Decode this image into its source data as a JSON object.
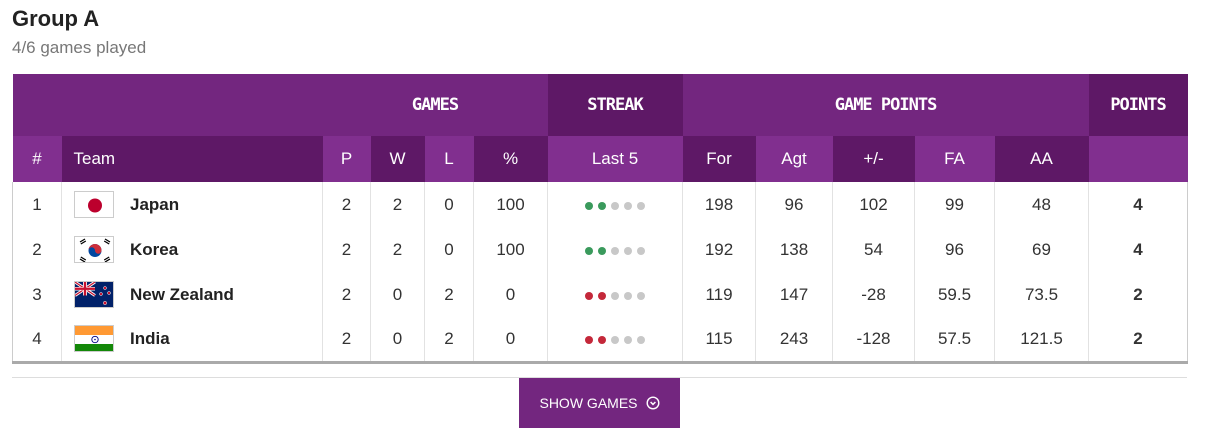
{
  "group": {
    "title": "Group A",
    "subtitle": "4/6 games played"
  },
  "header_groups": {
    "games": "GAMES",
    "streak": "STREAK",
    "game_points": "GAME POINTS",
    "points": "POINTS"
  },
  "columns": {
    "rank": "#",
    "team": "Team",
    "p": "P",
    "w": "W",
    "l": "L",
    "pct": "%",
    "last5": "Last 5",
    "for": "For",
    "agt": "Agt",
    "diff": "+/-",
    "fa": "FA",
    "aa": "AA"
  },
  "colors": {
    "accent": "#73267f",
    "win": "#3a9a5c",
    "loss": "#c4283a",
    "none": "#c8c8c8"
  },
  "teams": [
    {
      "rank": "1",
      "name": "Japan",
      "flag": "japan-flag-icon",
      "p": "2",
      "w": "2",
      "l": "0",
      "pct": "100",
      "streak": [
        "W",
        "W",
        "-",
        "-",
        "-"
      ],
      "for": "198",
      "agt": "96",
      "diff": "102",
      "fa": "99",
      "aa": "48",
      "points": "4"
    },
    {
      "rank": "2",
      "name": "Korea",
      "flag": "korea-flag-icon",
      "p": "2",
      "w": "2",
      "l": "0",
      "pct": "100",
      "streak": [
        "W",
        "W",
        "-",
        "-",
        "-"
      ],
      "for": "192",
      "agt": "138",
      "diff": "54",
      "fa": "96",
      "aa": "69",
      "points": "4"
    },
    {
      "rank": "3",
      "name": "New Zealand",
      "flag": "new-zealand-flag-icon",
      "p": "2",
      "w": "0",
      "l": "2",
      "pct": "0",
      "streak": [
        "L",
        "L",
        "-",
        "-",
        "-"
      ],
      "for": "119",
      "agt": "147",
      "diff": "-28",
      "fa": "59.5",
      "aa": "73.5",
      "points": "2"
    },
    {
      "rank": "4",
      "name": "India",
      "flag": "india-flag-icon",
      "p": "2",
      "w": "0",
      "l": "2",
      "pct": "0",
      "streak": [
        "L",
        "L",
        "-",
        "-",
        "-"
      ],
      "for": "115",
      "agt": "243",
      "diff": "-128",
      "fa": "57.5",
      "aa": "121.5",
      "points": "2"
    }
  ],
  "show_games": {
    "label": "SHOW GAMES",
    "icon": "chevron-down-circle-icon"
  }
}
